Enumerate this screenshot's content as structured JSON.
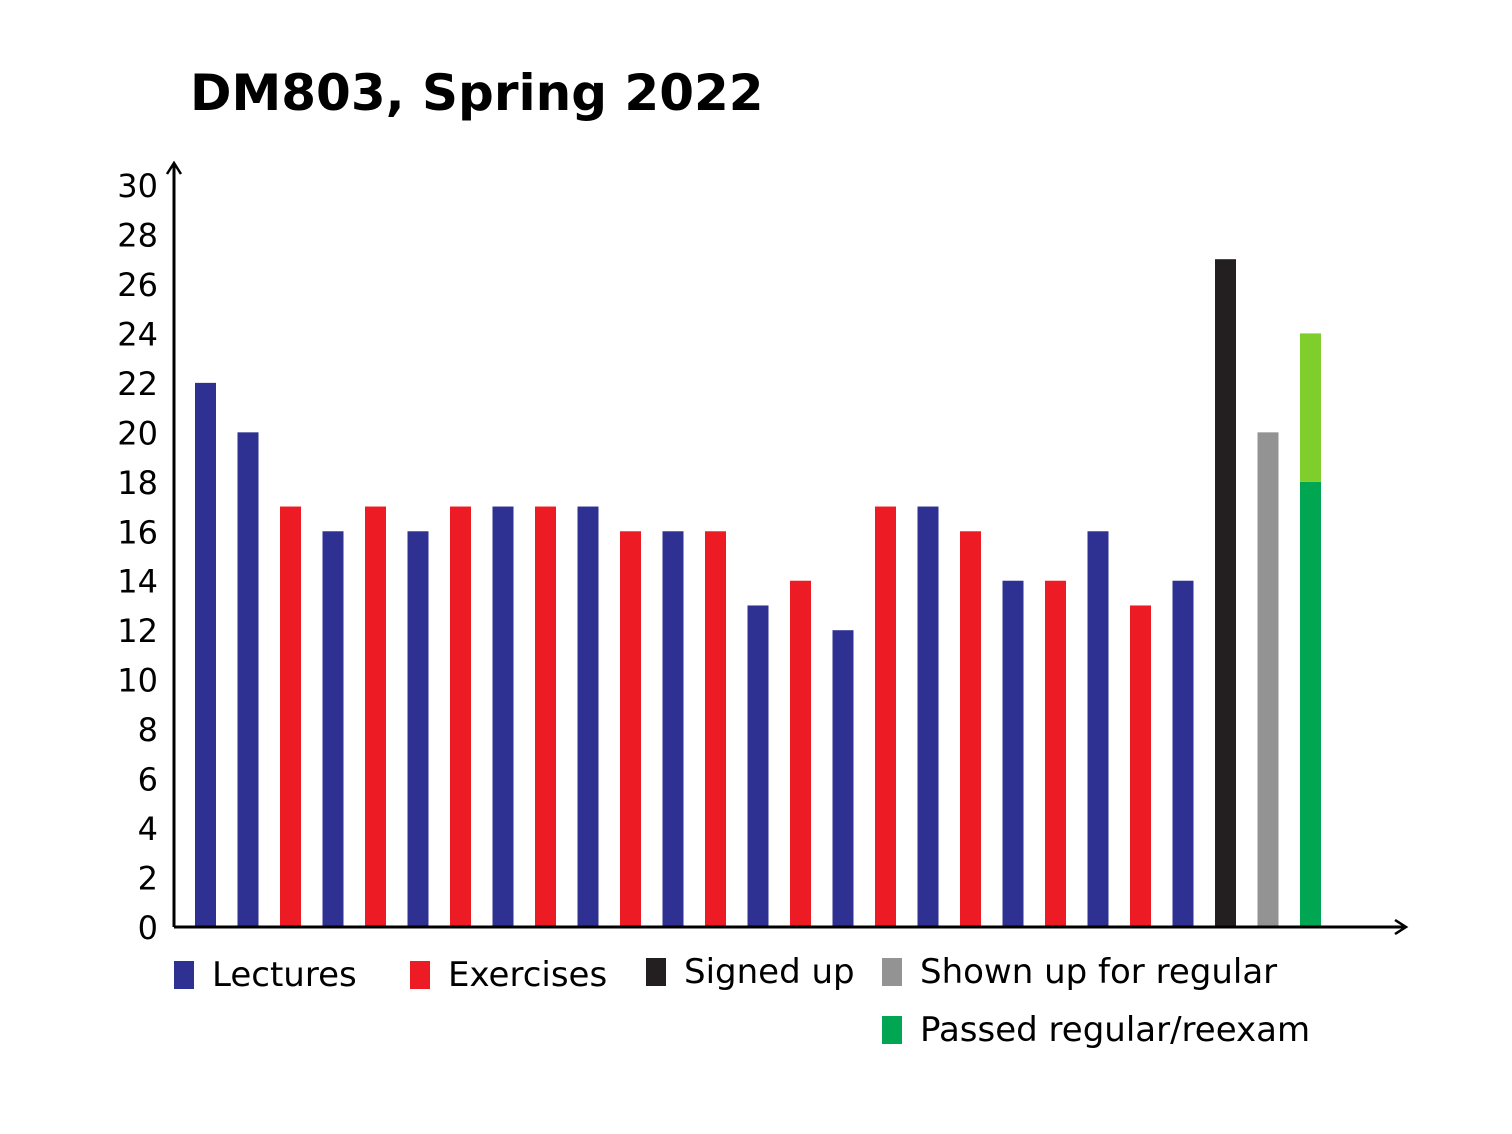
{
  "chart_data": {
    "type": "bar",
    "title": "DM803, Spring 2022",
    "xlabel": "",
    "ylabel": "",
    "ylim": [
      0,
      30
    ],
    "yticks": [
      0,
      2,
      4,
      6,
      8,
      10,
      12,
      14,
      16,
      18,
      20,
      22,
      24,
      26,
      28,
      30
    ],
    "grid": false,
    "legend_position": "bottom",
    "colors": {
      "Lectures": "#2e3192",
      "Exercises": "#ed1c24",
      "Signed up": "#231f20",
      "Shown up for regular": "#939393",
      "Passed regular/reexam": "#00a651",
      "Passed reexam extra": "#7fce2b"
    },
    "legend": [
      "Lectures",
      "Exercises",
      "Signed up",
      "Shown up for regular",
      "Passed regular/reexam"
    ],
    "bars": [
      {
        "series": "Lectures",
        "value": 22
      },
      {
        "series": "Lectures",
        "value": 20
      },
      {
        "series": "Exercises",
        "value": 17
      },
      {
        "series": "Lectures",
        "value": 16
      },
      {
        "series": "Exercises",
        "value": 17
      },
      {
        "series": "Lectures",
        "value": 16
      },
      {
        "series": "Exercises",
        "value": 17
      },
      {
        "series": "Lectures",
        "value": 17
      },
      {
        "series": "Exercises",
        "value": 17
      },
      {
        "series": "Lectures",
        "value": 17
      },
      {
        "series": "Exercises",
        "value": 16
      },
      {
        "series": "Lectures",
        "value": 16
      },
      {
        "series": "Exercises",
        "value": 16
      },
      {
        "series": "Lectures",
        "value": 13
      },
      {
        "series": "Exercises",
        "value": 14
      },
      {
        "series": "Lectures",
        "value": 12
      },
      {
        "series": "Exercises",
        "value": 17
      },
      {
        "series": "Lectures",
        "value": 17
      },
      {
        "series": "Exercises",
        "value": 16
      },
      {
        "series": "Lectures",
        "value": 14
      },
      {
        "series": "Exercises",
        "value": 14
      },
      {
        "series": "Lectures",
        "value": 16
      },
      {
        "series": "Exercises",
        "value": 13
      },
      {
        "series": "Lectures",
        "value": 14
      },
      {
        "series": "Signed up",
        "value": 27
      },
      {
        "series": "Shown up for regular",
        "value": 20
      },
      {
        "series": "Passed regular/reexam",
        "value": 18,
        "stack_top": 24
      }
    ]
  }
}
